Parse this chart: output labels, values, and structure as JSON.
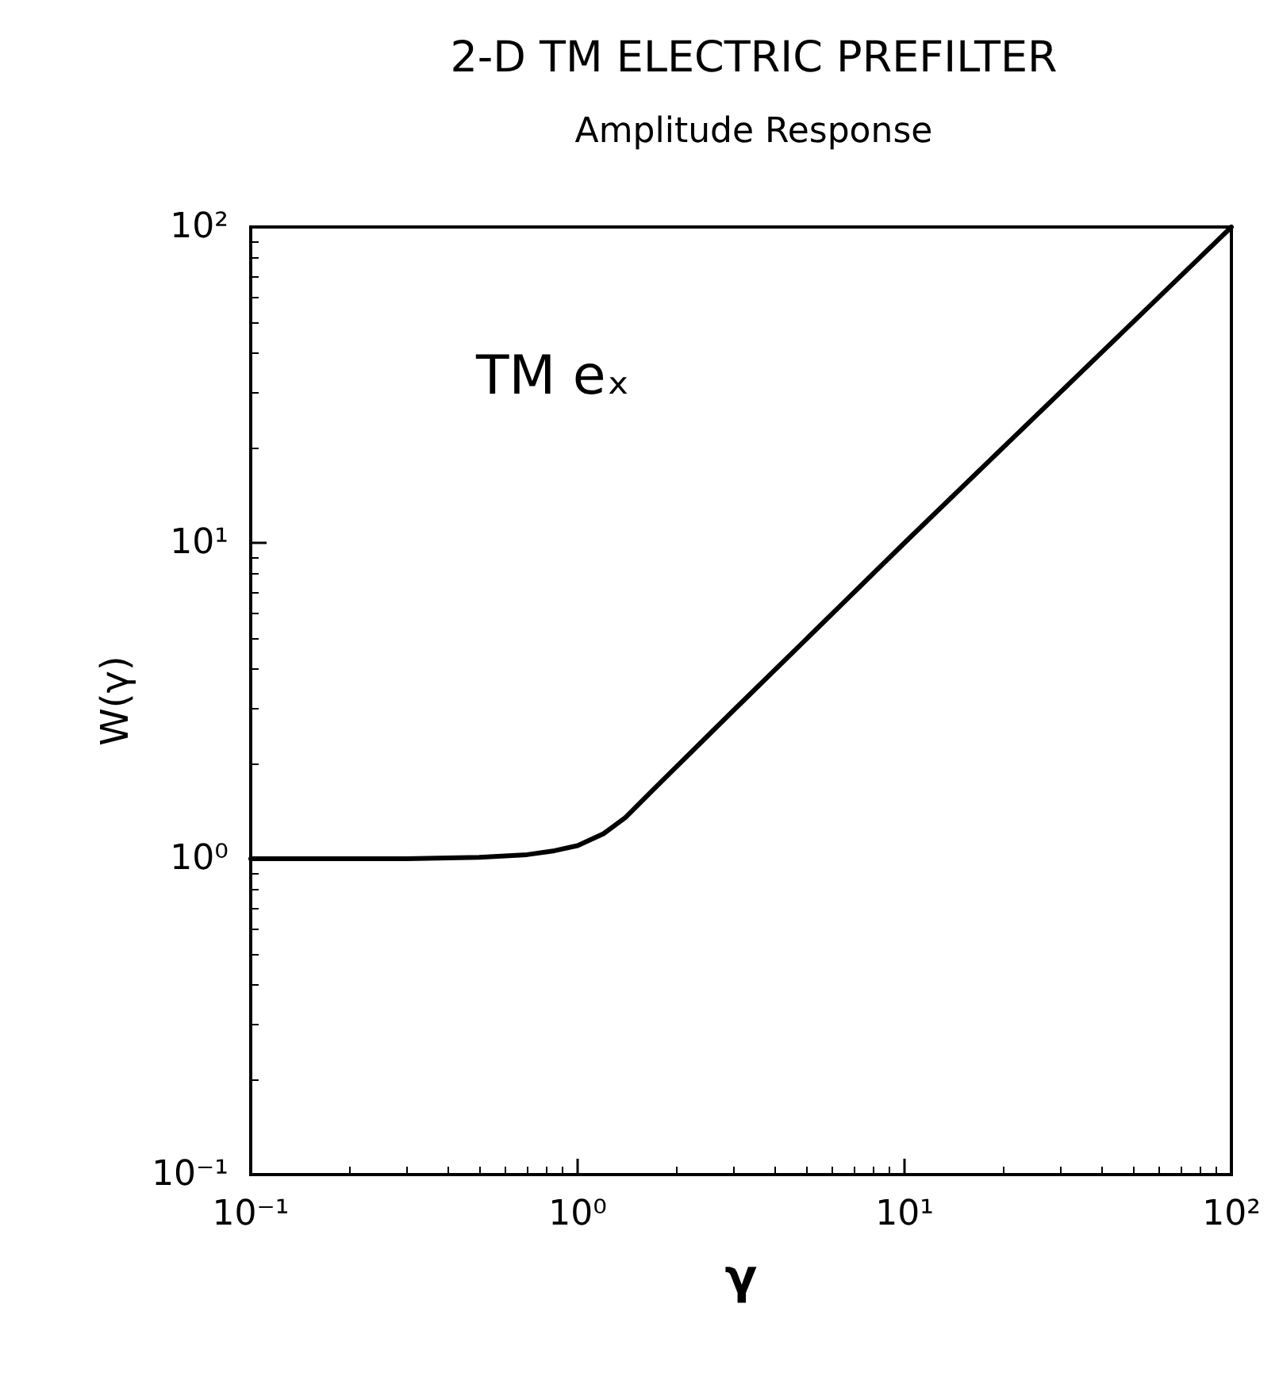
{
  "chart_data": {
    "type": "line",
    "title": "2-D TM ELECTRIC PREFILTER",
    "subtitle": "Amplitude Response",
    "xlabel": "γ",
    "ylabel": "W(γ)",
    "annotations": [
      "TM eₓ"
    ],
    "log": "xy",
    "grid": false,
    "marker": "none",
    "line_style": "solid",
    "xlim": [
      0.1,
      100
    ],
    "ylim": [
      0.1,
      100
    ],
    "xticks": [
      {
        "value": 0.1,
        "label": "10⁻¹"
      },
      {
        "value": 1,
        "label": "10⁰"
      },
      {
        "value": 10,
        "label": "10¹"
      },
      {
        "value": 100,
        "label": "10²"
      }
    ],
    "yticks": [
      {
        "value": 0.1,
        "label": "10⁻¹"
      },
      {
        "value": 1,
        "label": "10⁰"
      },
      {
        "value": 10,
        "label": "10¹"
      },
      {
        "value": 100,
        "label": "10²"
      }
    ],
    "x": [
      0.1,
      0.2,
      0.3,
      0.5,
      0.7,
      0.85,
      1,
      1.2,
      1.4,
      1.7,
      2,
      3,
      5,
      10,
      20,
      50,
      100
    ],
    "series": [
      {
        "color": "#000000",
        "values": [
          1,
          1,
          1,
          1.01,
          1.03,
          1.06,
          1.1,
          1.2,
          1.35,
          1.65,
          1.95,
          2.95,
          4.95,
          10,
          20,
          50,
          100
        ]
      }
    ]
  }
}
